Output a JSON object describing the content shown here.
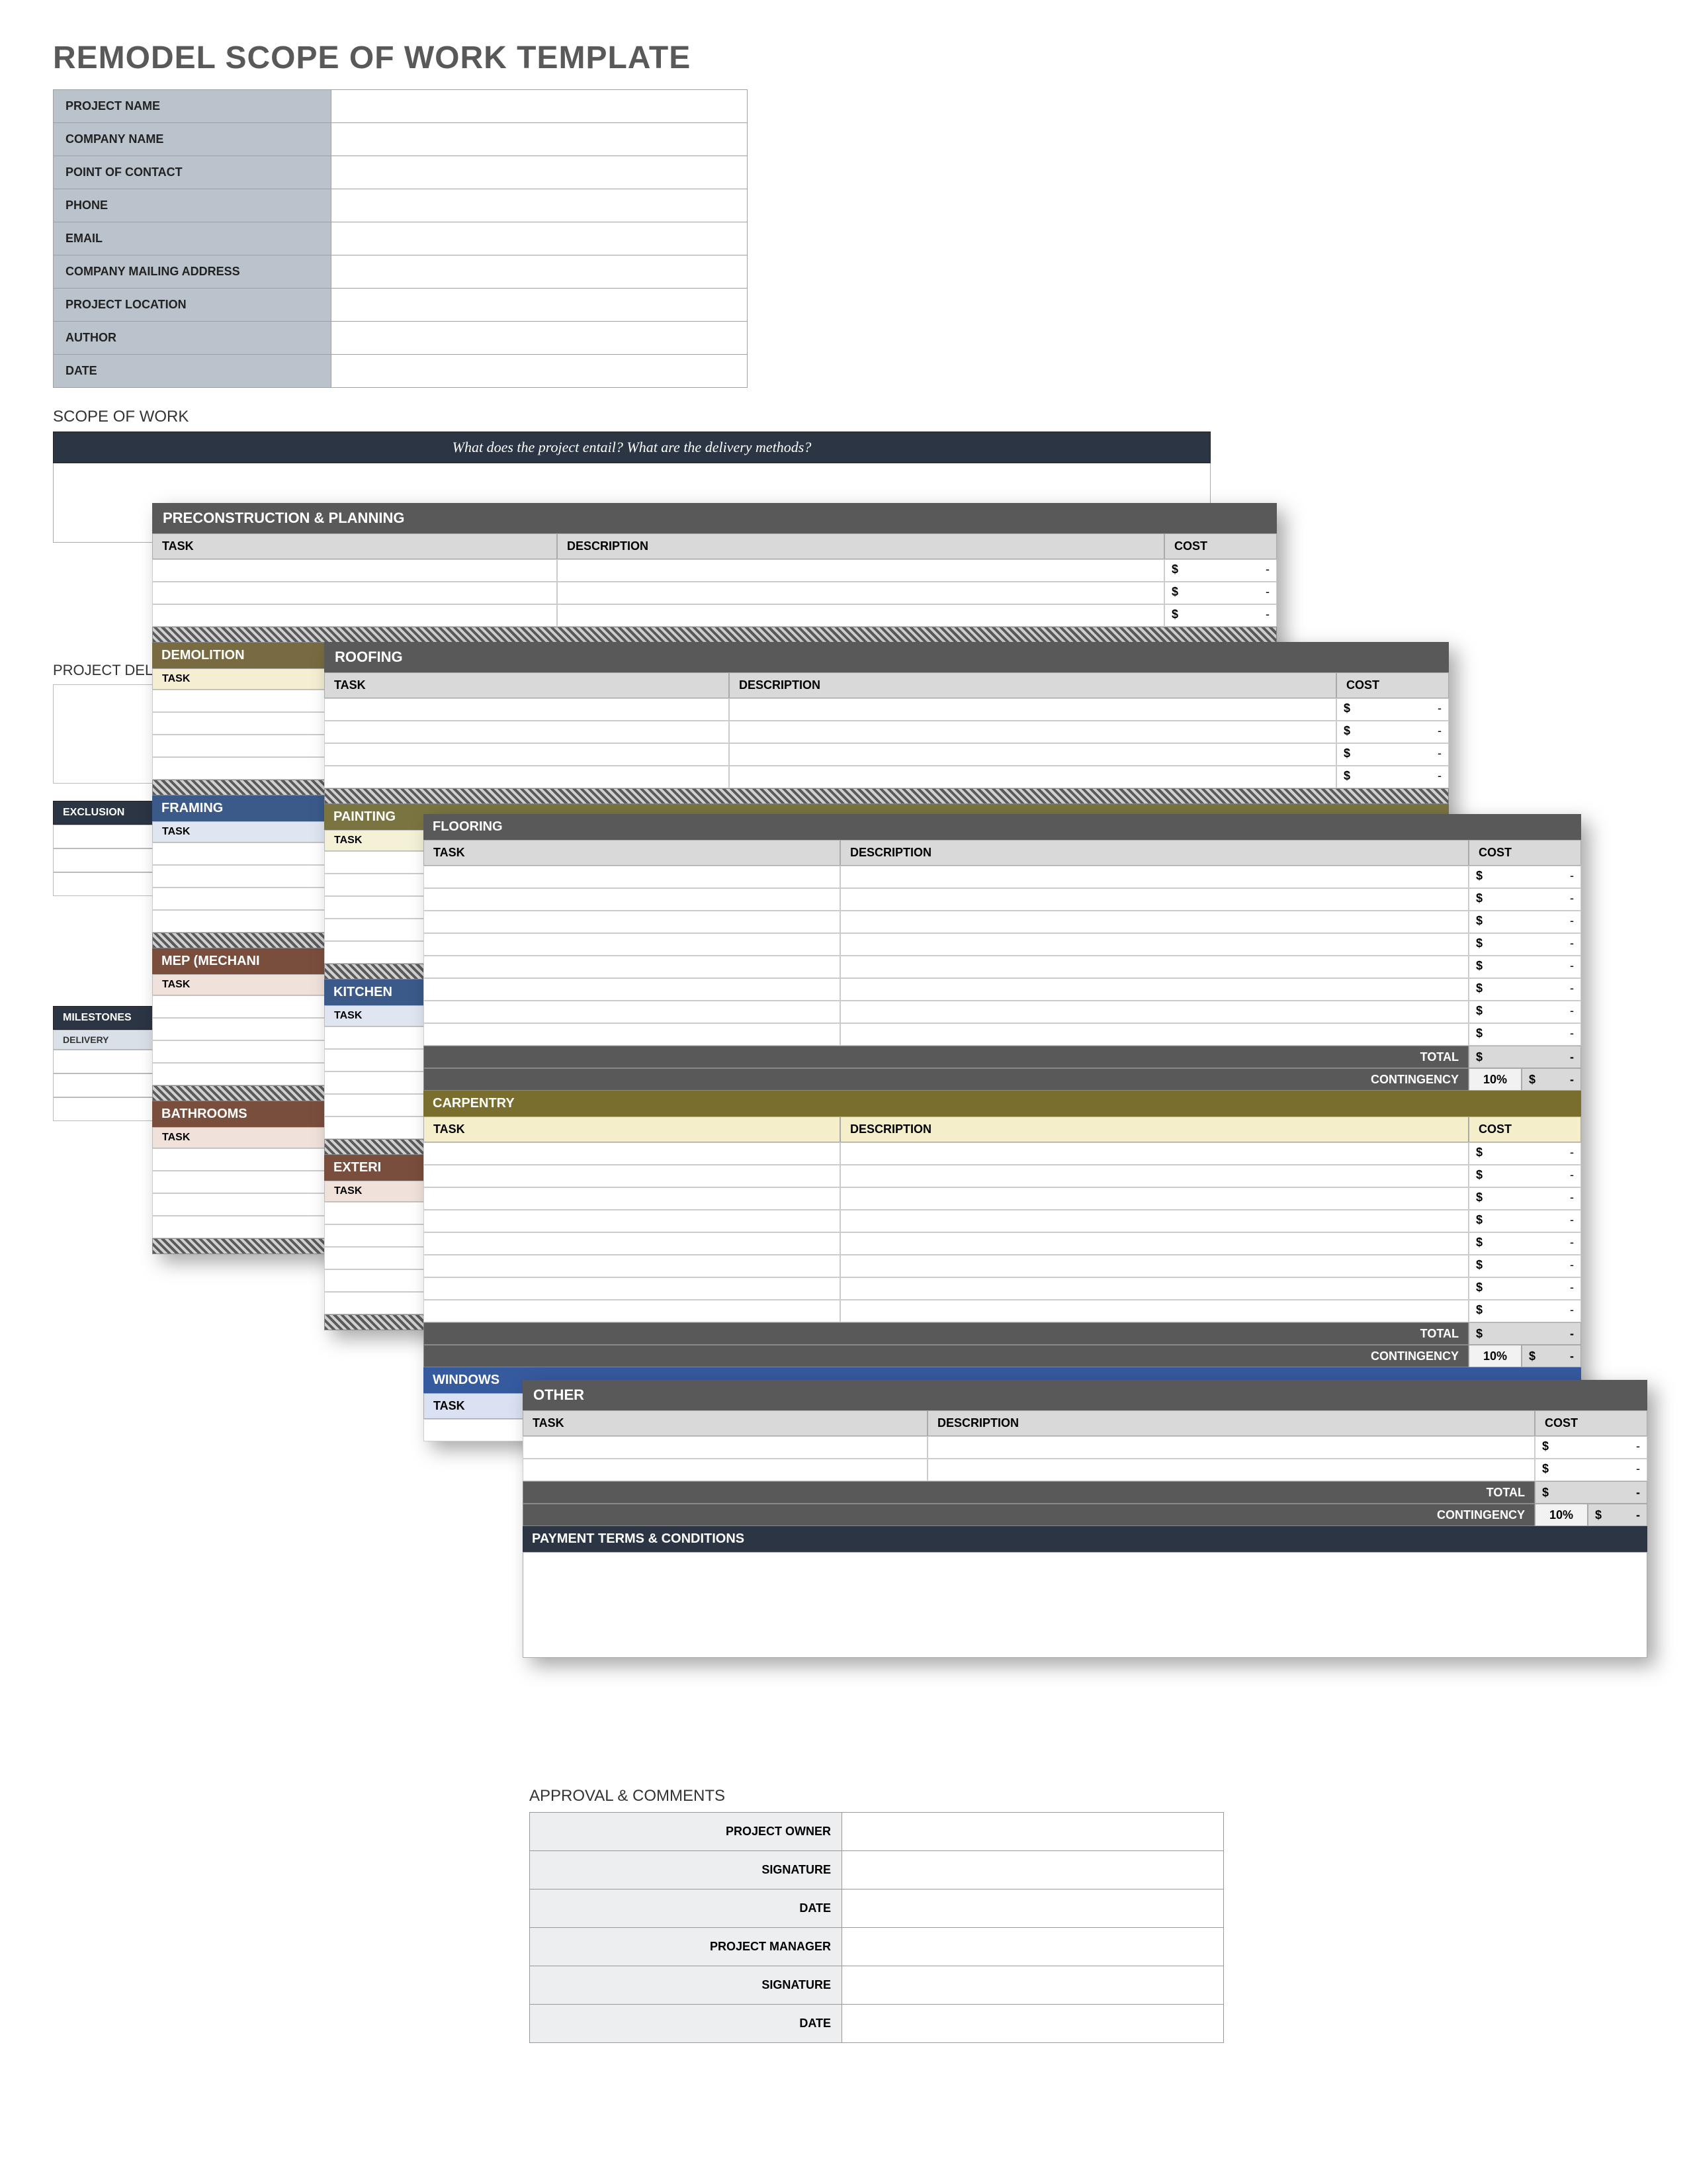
{
  "title": "REMODEL SCOPE OF WORK TEMPLATE",
  "info_fields": [
    {
      "label": "PROJECT NAME",
      "value": ""
    },
    {
      "label": "COMPANY NAME",
      "value": ""
    },
    {
      "label": "POINT OF CONTACT",
      "value": ""
    },
    {
      "label": "PHONE",
      "value": ""
    },
    {
      "label": "EMAIL",
      "value": ""
    },
    {
      "label": "COMPANY MAILING ADDRESS",
      "value": ""
    },
    {
      "label": "PROJECT LOCATION",
      "value": ""
    },
    {
      "label": "AUTHOR",
      "value": ""
    },
    {
      "label": "DATE",
      "value": ""
    }
  ],
  "scope_of_work": {
    "heading": "SCOPE OF WORK",
    "banner": "What does the project entail?  What are the delivery methods?"
  },
  "left_fragments": {
    "project_del": "PROJECT DEL",
    "exclusions": "EXCLUSION",
    "milestones": "MILESTONES",
    "delivery": "DELIVERY"
  },
  "columns": {
    "task": "TASK",
    "description": "DESCRIPTION",
    "cost": "COST"
  },
  "totals": {
    "total": "TOTAL",
    "contingency": "CONTINGENCY",
    "pct": "10%"
  },
  "currency": "$",
  "dash": "-",
  "panel1": {
    "title": "PRECONSTRUCTION & PLANNING",
    "header_bg": "#d9d9d9",
    "sections": [
      {
        "band": "DEMOLITION",
        "band_color": "#786b41",
        "sub_bg": "#f5eed2"
      },
      {
        "band": "FRAMING",
        "band_color": "#3b5a8a",
        "sub_bg": "#dfe6f2"
      },
      {
        "band": "MEP (MECHANI",
        "band_color": "#7a4e3d",
        "sub_bg": "#f0e2da"
      },
      {
        "band": "BATHROOMS",
        "band_color": "#7a4e3d",
        "sub_bg": "#f0e2da"
      }
    ]
  },
  "panel2": {
    "title": "ROOFING",
    "header_bg": "#d9d9d9",
    "sections": [
      {
        "band": "PAINTING",
        "band_color": "#7a7440",
        "sub_bg": "#f4f1d6"
      },
      {
        "band": "KITCHEN",
        "band_color": "#3b5a8a",
        "sub_bg": "#dfe6f2"
      },
      {
        "band": "EXTERI",
        "band_color": "#7a4e3d",
        "sub_bg": "#f0e2da"
      }
    ]
  },
  "panel3": {
    "sections": [
      {
        "band": "FLOORING",
        "band_color": "#595959",
        "header_bg": "#d9d9d9",
        "rows": 8
      },
      {
        "band": "CARPENTRY",
        "band_color": "#7a6e2f",
        "header_bg": "#f5eeca",
        "rows": 8
      },
      {
        "band": "WINDOWS",
        "band_color": "#365a9e",
        "header_bg": "#d9e1f2",
        "rows": 1
      }
    ]
  },
  "panel4": {
    "title": "OTHER",
    "header_bg": "#d9d9d9",
    "rows": 2,
    "payment_title": "PAYMENT TERMS & CONDITIONS",
    "payment_bg": "#2b3544"
  },
  "approval": {
    "heading": "APPROVAL & COMMENTS",
    "fields": [
      {
        "label": "PROJECT OWNER",
        "value": ""
      },
      {
        "label": "SIGNATURE",
        "value": ""
      },
      {
        "label": "DATE",
        "value": ""
      },
      {
        "label": "PROJECT MANAGER",
        "value": ""
      },
      {
        "label": "SIGNATURE",
        "value": ""
      },
      {
        "label": "DATE",
        "value": ""
      }
    ]
  },
  "colors": {
    "title_gray": "#595959",
    "info_bg": "#bac2cb",
    "dark_navy": "#2b3544",
    "hatch_dark": "#5a5a5a",
    "hatch_light": "#d0d0d0"
  }
}
